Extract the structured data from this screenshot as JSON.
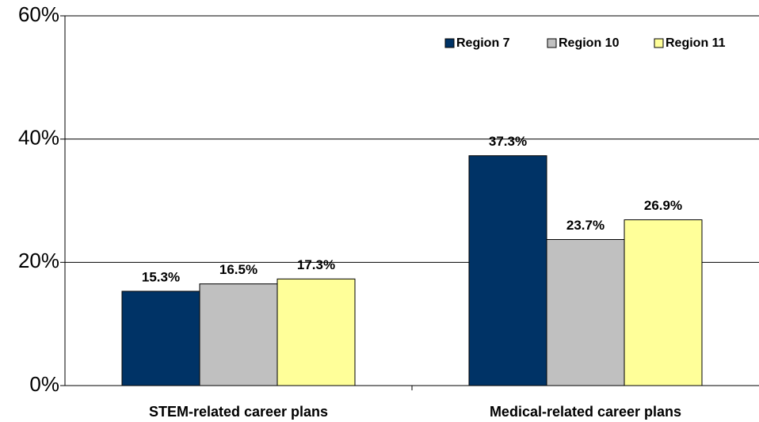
{
  "chart_data": {
    "type": "bar",
    "categories": [
      "STEM-related career plans",
      "Medical-related career plans"
    ],
    "series": [
      {
        "name": "Region 7",
        "color": "#003366",
        "values": [
          15.3,
          37.3
        ],
        "value_labels": [
          "15.3%",
          "37.3%"
        ]
      },
      {
        "name": "Region 10",
        "color": "#c0c0c0",
        "values": [
          16.5,
          23.7
        ],
        "value_labels": [
          "16.5%",
          "23.7%"
        ]
      },
      {
        "name": "Region 11",
        "color": "#ffff99",
        "values": [
          17.3,
          26.9
        ],
        "value_labels": [
          "17.3%",
          "26.9%"
        ]
      }
    ],
    "ylim": [
      0,
      60
    ],
    "yticks": [
      {
        "value": 0,
        "label": "0%"
      },
      {
        "value": 20,
        "label": "20%"
      },
      {
        "value": 40,
        "label": "40%"
      },
      {
        "value": 60,
        "label": "60%"
      }
    ],
    "grid": true,
    "legend": "top-right"
  }
}
